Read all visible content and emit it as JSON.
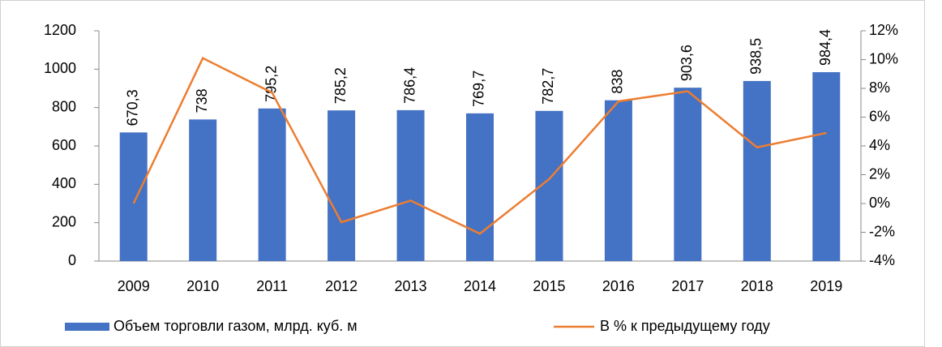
{
  "chart_data": {
    "type": "bar_line",
    "categories": [
      "2009",
      "2010",
      "2011",
      "2012",
      "2013",
      "2014",
      "2015",
      "2016",
      "2017",
      "2018",
      "2019"
    ],
    "series": [
      {
        "name": "Объем торговли газом, млрд. куб. м",
        "color": "#4472c4",
        "type": "bar",
        "values": [
          670.3,
          738,
          795.2,
          785.2,
          786.4,
          769.7,
          782.7,
          838,
          903.6,
          938.5,
          984.4
        ],
        "value_labels": [
          "670,3",
          "738",
          "795,2",
          "785,2",
          "786,4",
          "769,7",
          "782,7",
          "838",
          "903,6",
          "938,5",
          "984,4"
        ]
      },
      {
        "name": "В % к предыдущему году",
        "color": "#ed7d31",
        "type": "line",
        "axis": "y2",
        "values": [
          0,
          10.1,
          7.7,
          -1.3,
          0.2,
          -2.1,
          1.7,
          7.1,
          7.8,
          3.9,
          4.9
        ]
      }
    ],
    "ylim": [
      0,
      1200
    ],
    "yticks": [
      0,
      200,
      400,
      600,
      800,
      1000,
      1200
    ],
    "y2lim": [
      -4,
      12
    ],
    "y2ticks": [
      {
        "value": -4,
        "label": "-4%"
      },
      {
        "value": -2,
        "label": "-2%"
      },
      {
        "value": 0,
        "label": "0%"
      },
      {
        "value": 2,
        "label": "2%"
      },
      {
        "value": 4,
        "label": "4%"
      },
      {
        "value": 6,
        "label": "6%"
      },
      {
        "value": 8,
        "label": "8%"
      },
      {
        "value": 10,
        "label": "10%"
      },
      {
        "value": 12,
        "label": "12%"
      }
    ],
    "legend": "bottom"
  }
}
